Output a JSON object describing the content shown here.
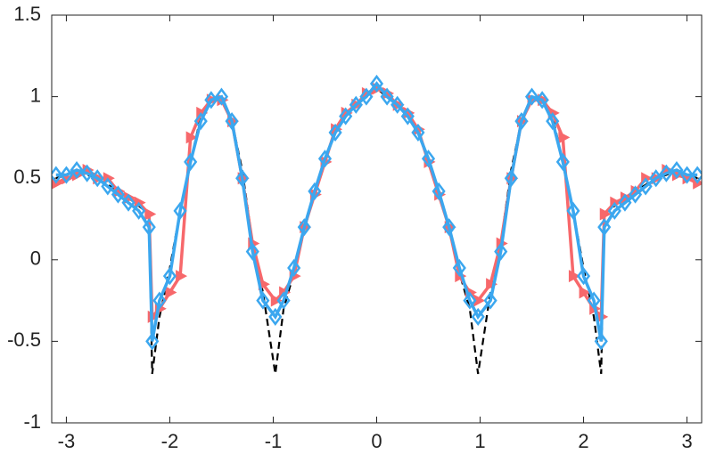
{
  "chart_data": {
    "type": "line",
    "x": [
      -3.1,
      -3.0,
      -2.9,
      -2.8,
      -2.7,
      -2.6,
      -2.5,
      -2.4,
      -2.3,
      -2.2,
      -2.17,
      -2.1,
      -2.0,
      -1.9,
      -1.8,
      -1.7,
      -1.6,
      -1.5,
      -1.4,
      -1.3,
      -1.2,
      -1.1,
      -0.98,
      -0.9,
      -0.8,
      -0.7,
      -0.6,
      -0.5,
      -0.4,
      -0.3,
      -0.2,
      -0.1,
      0,
      0.1,
      0.2,
      0.3,
      0.4,
      0.5,
      0.6,
      0.7,
      0.8,
      0.9,
      0.98,
      1.1,
      1.2,
      1.3,
      1.4,
      1.5,
      1.6,
      1.7,
      1.8,
      1.9,
      2.0,
      2.1,
      2.17,
      2.2,
      2.3,
      2.4,
      2.5,
      2.6,
      2.7,
      2.8,
      2.9,
      3.0,
      3.1
    ],
    "series": [
      {
        "color": "#000000",
        "style": "dashed",
        "marker": null,
        "values": [
          0.5,
          0.52,
          0.55,
          0.52,
          0.5,
          0.46,
          0.42,
          0.38,
          0.33,
          0.28,
          -0.7,
          -0.35,
          -0.05,
          0.3,
          0.6,
          0.88,
          1.0,
          0.98,
          0.85,
          0.55,
          0.1,
          -0.2,
          -0.7,
          -0.3,
          -0.08,
          0.18,
          0.42,
          0.62,
          0.78,
          0.88,
          0.95,
          1.0,
          1.05,
          1.0,
          0.95,
          0.88,
          0.78,
          0.62,
          0.42,
          0.18,
          -0.08,
          -0.3,
          -0.7,
          -0.2,
          0.1,
          0.55,
          0.85,
          0.98,
          1.0,
          0.88,
          0.6,
          0.3,
          -0.05,
          -0.35,
          -0.7,
          0.28,
          0.33,
          0.38,
          0.42,
          0.46,
          0.5,
          0.52,
          0.55,
          0.52,
          0.5
        ]
      },
      {
        "color": "#f7686b",
        "style": "solid",
        "marker": "triangle-right",
        "values": [
          0.47,
          0.5,
          0.52,
          0.55,
          0.5,
          0.5,
          0.42,
          0.38,
          0.35,
          0.28,
          -0.35,
          -0.3,
          -0.2,
          -0.1,
          0.75,
          0.9,
          0.98,
          0.98,
          0.85,
          0.5,
          0.1,
          -0.15,
          -0.25,
          -0.2,
          -0.1,
          0.2,
          0.4,
          0.6,
          0.8,
          0.9,
          0.95,
          1.02,
          1.05,
          1.02,
          0.95,
          0.9,
          0.8,
          0.6,
          0.4,
          0.2,
          -0.1,
          -0.2,
          -0.25,
          -0.15,
          0.1,
          0.5,
          0.85,
          0.98,
          0.98,
          0.9,
          0.75,
          -0.1,
          -0.2,
          -0.3,
          -0.35,
          0.28,
          0.35,
          0.38,
          0.42,
          0.5,
          0.5,
          0.55,
          0.52,
          0.5,
          0.47
        ]
      },
      {
        "color": "#3ba7ef",
        "style": "solid",
        "marker": "diamond",
        "values": [
          0.52,
          0.52,
          0.55,
          0.53,
          0.5,
          0.45,
          0.4,
          0.35,
          0.3,
          0.2,
          -0.5,
          -0.25,
          -0.1,
          0.3,
          0.6,
          0.85,
          0.98,
          1.0,
          0.85,
          0.5,
          0.05,
          -0.25,
          -0.35,
          -0.25,
          -0.05,
          0.2,
          0.42,
          0.62,
          0.78,
          0.88,
          0.95,
          1.0,
          1.08,
          1.0,
          0.95,
          0.88,
          0.78,
          0.62,
          0.42,
          0.2,
          -0.05,
          -0.25,
          -0.35,
          -0.25,
          0.05,
          0.5,
          0.85,
          1.0,
          0.98,
          0.85,
          0.6,
          0.3,
          -0.1,
          -0.25,
          -0.5,
          0.2,
          0.3,
          0.35,
          0.4,
          0.45,
          0.5,
          0.53,
          0.55,
          0.52,
          0.52
        ]
      }
    ],
    "xlim": [
      -3.1416,
      3.1416
    ],
    "xticks": [
      -3,
      -2,
      -1,
      0,
      1,
      2,
      3
    ],
    "ylim": [
      -1,
      1.5
    ],
    "yticks": [
      -1,
      -0.5,
      0,
      0.5,
      1,
      1.5
    ],
    "grid": false
  }
}
